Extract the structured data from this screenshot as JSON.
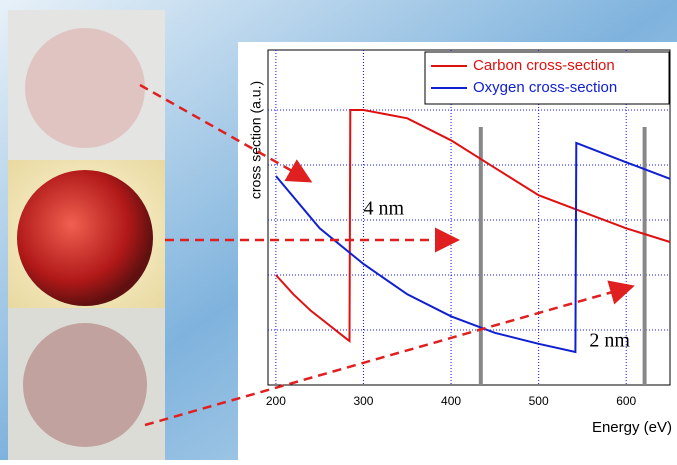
{
  "chart_data": {
    "type": "line",
    "xlabel": "Energy (eV)",
    "ylabel": "cross section (a.u.)",
    "xlim": [
      191,
      650
    ],
    "xticks": [
      200,
      300,
      400,
      500,
      600
    ],
    "ylim": [
      0,
      6
    ],
    "ygrid": [
      1,
      2,
      3,
      4,
      5
    ],
    "grid": true,
    "legend": "top-right",
    "series": [
      {
        "name": "Carbon cross-section",
        "color": "#e01010",
        "x": [
          200,
          220,
          240,
          260,
          280,
          284,
          285,
          300,
          350,
          400,
          450,
          500,
          550,
          600,
          650
        ],
        "values": [
          2.0,
          1.65,
          1.35,
          1.1,
          0.85,
          0.8,
          5.0,
          5.0,
          4.85,
          4.45,
          3.95,
          3.45,
          3.15,
          2.85,
          2.6
        ]
      },
      {
        "name": "Oxygen cross-section",
        "color": "#1020d0",
        "x": [
          200,
          250,
          300,
          350,
          400,
          450,
          500,
          542,
          543,
          600,
          650
        ],
        "values": [
          3.8,
          2.85,
          2.2,
          1.65,
          1.25,
          0.95,
          0.75,
          0.6,
          4.4,
          4.05,
          3.75
        ]
      }
    ],
    "vlines": [
      434,
      621
    ],
    "annotations": [
      {
        "text": "4 nm",
        "x": 300,
        "y": 3.0
      },
      {
        "text": "2 nm",
        "x": 558,
        "y": 0.6
      }
    ]
  }
}
